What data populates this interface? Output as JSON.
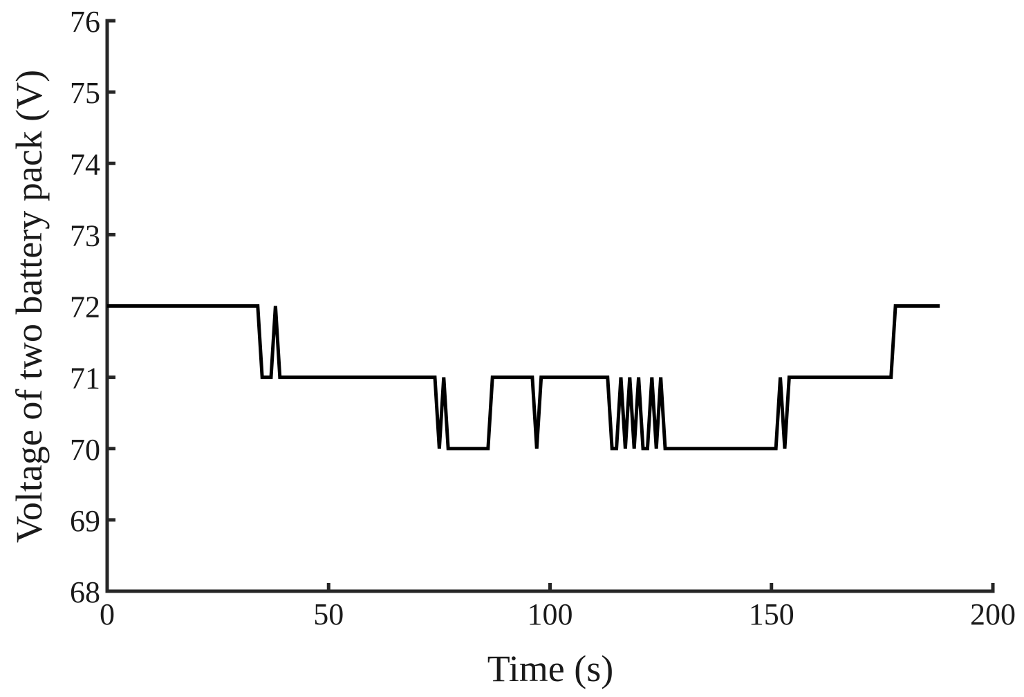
{
  "chart_data": {
    "type": "line",
    "title": "",
    "xlabel": "Time (s)",
    "ylabel": "Voltage of two battery pack (V)",
    "xlim": [
      0,
      200
    ],
    "ylim": [
      68,
      76
    ],
    "xticks": [
      0,
      50,
      100,
      150,
      200
    ],
    "yticks": [
      68,
      69,
      70,
      71,
      72,
      73,
      74,
      75,
      76
    ],
    "grid": false,
    "legend": "none",
    "line_color": "#000000",
    "series": [
      {
        "x": [
          0,
          34,
          35,
          37,
          38,
          39,
          74,
          75,
          76,
          77,
          86,
          87,
          96,
          97,
          98,
          113,
          114,
          115,
          116,
          117,
          118,
          119,
          120,
          121,
          122,
          123,
          124,
          125,
          126,
          151,
          152,
          153,
          154,
          177,
          178,
          188
        ],
        "y": [
          72,
          72,
          71,
          71,
          72,
          71,
          71,
          70,
          71,
          70,
          70,
          71,
          71,
          70,
          71,
          71,
          70,
          70,
          71,
          70,
          71,
          70,
          71,
          70,
          70,
          71,
          70,
          71,
          70,
          70,
          71,
          70,
          71,
          71,
          72,
          72
        ]
      }
    ]
  }
}
